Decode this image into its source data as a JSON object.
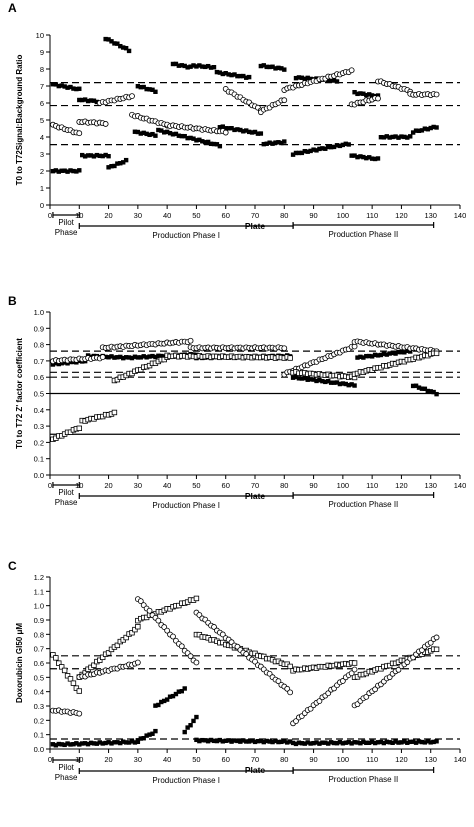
{
  "chart_data": [
    {
      "panel": "A",
      "type": "scatter",
      "title": "",
      "xlabel": "Plate",
      "ylabel": "T0 to T72Signal:Background Ratio",
      "xlim": [
        0,
        140
      ],
      "ylim": [
        0,
        10
      ],
      "xticks": [
        "0",
        "10",
        "20",
        "30",
        "40",
        "50",
        "60",
        "70",
        "80",
        "90",
        "100",
        "110",
        "120",
        "130",
        "140"
      ],
      "yticks": [
        "0",
        "1",
        "2",
        "3",
        "4",
        "5",
        "6",
        "7",
        "8",
        "9",
        "10"
      ],
      "grid": false,
      "hlines": [
        {
          "y": 7.2,
          "style": "dashed"
        },
        {
          "y": 5.85,
          "style": "dashed"
        },
        {
          "y": 3.55,
          "style": "dashed"
        }
      ],
      "series": [
        {
          "marker": "filled-square",
          "segments": [
            {
              "x0": 1,
              "x1": 10,
              "y0": 7.1,
              "y1": 6.8
            },
            {
              "x0": 19,
              "x1": 27,
              "y0": 9.8,
              "y1": 9.1
            },
            {
              "x0": 30,
              "x1": 36,
              "y0": 7.0,
              "y1": 6.7
            },
            {
              "x0": 42,
              "x1": 48,
              "y0": 8.3,
              "y1": 8.1
            },
            {
              "x0": 49,
              "x1": 56,
              "y0": 8.2,
              "y1": 8.1
            },
            {
              "x0": 57,
              "x1": 68,
              "y0": 7.8,
              "y1": 7.5
            },
            {
              "x0": 72,
              "x1": 80,
              "y0": 8.2,
              "y1": 8.0
            },
            {
              "x0": 84,
              "x1": 98,
              "y0": 7.5,
              "y1": 7.3
            },
            {
              "x0": 104,
              "x1": 112,
              "y0": 6.6,
              "y1": 6.4
            },
            {
              "x0": 1,
              "x1": 10,
              "y0": 2.0,
              "y1": 2.0
            },
            {
              "x0": 11,
              "x1": 20,
              "y0": 2.9,
              "y1": 2.9
            },
            {
              "x0": 20,
              "x1": 26,
              "y0": 2.2,
              "y1": 2.6
            },
            {
              "x0": 29,
              "x1": 36,
              "y0": 4.3,
              "y1": 4.1
            },
            {
              "x0": 37,
              "x1": 58,
              "y0": 4.4,
              "y1": 3.5
            },
            {
              "x0": 58,
              "x1": 72,
              "y0": 4.6,
              "y1": 4.2
            },
            {
              "x0": 73,
              "x1": 80,
              "y0": 3.6,
              "y1": 3.7
            },
            {
              "x0": 83,
              "x1": 102,
              "y0": 3.0,
              "y1": 3.6
            },
            {
              "x0": 103,
              "x1": 112,
              "y0": 2.9,
              "y1": 2.7
            },
            {
              "x0": 113,
              "x1": 123,
              "y0": 4.0,
              "y1": 4.0
            },
            {
              "x0": 124,
              "x1": 132,
              "y0": 4.3,
              "y1": 4.6
            },
            {
              "x0": 10,
              "x1": 16,
              "y0": 6.2,
              "y1": 6.1
            }
          ]
        },
        {
          "marker": "open-circle",
          "segments": [
            {
              "x0": 1,
              "x1": 10,
              "y0": 4.7,
              "y1": 4.2
            },
            {
              "x0": 10,
              "x1": 19,
              "y0": 4.9,
              "y1": 4.8
            },
            {
              "x0": 17,
              "x1": 28,
              "y0": 6.0,
              "y1": 6.4
            },
            {
              "x0": 28,
              "x1": 40,
              "y0": 5.3,
              "y1": 4.7
            },
            {
              "x0": 40,
              "x1": 60,
              "y0": 4.7,
              "y1": 4.3
            },
            {
              "x0": 60,
              "x1": 72,
              "y0": 6.8,
              "y1": 5.6
            },
            {
              "x0": 72,
              "x1": 80,
              "y0": 5.5,
              "y1": 6.2
            },
            {
              "x0": 80,
              "x1": 103,
              "y0": 6.8,
              "y1": 7.9
            },
            {
              "x0": 103,
              "x1": 112,
              "y0": 5.9,
              "y1": 6.3
            },
            {
              "x0": 112,
              "x1": 123,
              "y0": 7.3,
              "y1": 6.7
            },
            {
              "x0": 123,
              "x1": 132,
              "y0": 6.5,
              "y1": 6.5
            }
          ]
        }
      ],
      "annotations": [
        {
          "label": "Pilot\nPhase",
          "x_start": 1,
          "x_end": 10
        },
        {
          "label": "Production Phase I",
          "x_start": 10,
          "x_end": 83
        },
        {
          "label": "Production Phase II",
          "x_start": 83,
          "x_end": 131
        }
      ]
    },
    {
      "panel": "B",
      "type": "scatter",
      "title": "",
      "xlabel": "Plate",
      "ylabel": "T0 to T72 Z' factor coefficient",
      "xlim": [
        0,
        140
      ],
      "ylim": [
        0,
        1
      ],
      "xticks": [
        "0",
        "10",
        "20",
        "30",
        "40",
        "50",
        "60",
        "70",
        "80",
        "90",
        "100",
        "110",
        "120",
        "130",
        "140"
      ],
      "yticks": [
        "0.0",
        "0.1",
        "0.2",
        "0.3",
        "0.4",
        "0.5",
        "0.6",
        "0.7",
        "0.8",
        "0.9",
        "1.0"
      ],
      "grid": false,
      "hlines": [
        {
          "y": 0.76,
          "style": "dashed"
        },
        {
          "y": 0.63,
          "style": "dashed"
        },
        {
          "y": 0.6,
          "style": "dashed"
        },
        {
          "y": 0.5,
          "style": "solid"
        },
        {
          "y": 0.25,
          "style": "solid"
        }
      ],
      "series": [
        {
          "marker": "filled-square",
          "segments": [
            {
              "x0": 1,
              "x1": 12,
              "y0": 0.68,
              "y1": 0.7
            },
            {
              "x0": 13,
              "x1": 26,
              "y0": 0.73,
              "y1": 0.72
            },
            {
              "x0": 27,
              "x1": 50,
              "y0": 0.72,
              "y1": 0.74
            },
            {
              "x0": 50,
              "x1": 82,
              "y0": 0.72,
              "y1": 0.73
            },
            {
              "x0": 83,
              "x1": 104,
              "y0": 0.6,
              "y1": 0.55
            },
            {
              "x0": 105,
              "x1": 123,
              "y0": 0.72,
              "y1": 0.76
            },
            {
              "x0": 124,
              "x1": 132,
              "y0": 0.55,
              "y1": 0.5
            }
          ]
        },
        {
          "marker": "open-circle",
          "segments": [
            {
              "x0": 1,
              "x1": 18,
              "y0": 0.7,
              "y1": 0.72
            },
            {
              "x0": 18,
              "x1": 48,
              "y0": 0.78,
              "y1": 0.82
            },
            {
              "x0": 48,
              "x1": 80,
              "y0": 0.78,
              "y1": 0.78
            },
            {
              "x0": 80,
              "x1": 104,
              "y0": 0.62,
              "y1": 0.79
            },
            {
              "x0": 104,
              "x1": 132,
              "y0": 0.82,
              "y1": 0.76
            }
          ]
        },
        {
          "marker": "open-square",
          "segments": [
            {
              "x0": 1,
              "x1": 10,
              "y0": 0.22,
              "y1": 0.29
            },
            {
              "x0": 11,
              "x1": 22,
              "y0": 0.33,
              "y1": 0.38
            },
            {
              "x0": 22,
              "x1": 40,
              "y0": 0.58,
              "y1": 0.72
            },
            {
              "x0": 40,
              "x1": 82,
              "y0": 0.73,
              "y1": 0.72
            },
            {
              "x0": 83,
              "x1": 104,
              "y0": 0.63,
              "y1": 0.6
            },
            {
              "x0": 104,
              "x1": 132,
              "y0": 0.62,
              "y1": 0.75
            }
          ]
        }
      ],
      "annotations": [
        {
          "label": "Pilot\nPhase",
          "x_start": 1,
          "x_end": 10
        },
        {
          "label": "Production Phase I",
          "x_start": 10,
          "x_end": 83
        },
        {
          "label": "Production Phase II",
          "x_start": 83,
          "x_end": 131
        }
      ]
    },
    {
      "panel": "C",
      "type": "scatter",
      "title": "",
      "xlabel": "Plate",
      "ylabel": "Doxorubicin GI50 μM",
      "xlim": [
        0,
        140
      ],
      "ylim": [
        0,
        1.2
      ],
      "xticks": [
        "0",
        "10",
        "20",
        "30",
        "40",
        "50",
        "60",
        "70",
        "80",
        "90",
        "100",
        "110",
        "120",
        "130",
        "140"
      ],
      "yticks": [
        "0.0",
        "0.1",
        "0.2",
        "0.3",
        "0.4",
        "0.5",
        "0.6",
        "0.7",
        "0.8",
        "0.9",
        "1.0",
        "1.1",
        "1.2"
      ],
      "grid": false,
      "hlines": [
        {
          "y": 0.65,
          "style": "dashed"
        },
        {
          "y": 0.56,
          "style": "dashed"
        },
        {
          "y": 0.07,
          "style": "dashed"
        }
      ],
      "series": [
        {
          "marker": "filled-square",
          "segments": [
            {
              "x0": 1,
              "x1": 30,
              "y0": 0.03,
              "y1": 0.05
            },
            {
              "x0": 30,
              "x1": 36,
              "y0": 0.06,
              "y1": 0.12
            },
            {
              "x0": 36,
              "x1": 46,
              "y0": 0.3,
              "y1": 0.42
            },
            {
              "x0": 46,
              "x1": 50,
              "y0": 0.12,
              "y1": 0.22
            },
            {
              "x0": 50,
              "x1": 82,
              "y0": 0.06,
              "y1": 0.05
            },
            {
              "x0": 83,
              "x1": 132,
              "y0": 0.04,
              "y1": 0.05
            }
          ]
        },
        {
          "marker": "open-square",
          "segments": [
            {
              "x0": 1,
              "x1": 10,
              "y0": 0.66,
              "y1": 0.4
            },
            {
              "x0": 10,
              "x1": 30,
              "y0": 0.5,
              "y1": 0.85
            },
            {
              "x0": 30,
              "x1": 50,
              "y0": 0.9,
              "y1": 1.05
            },
            {
              "x0": 50,
              "x1": 82,
              "y0": 0.8,
              "y1": 0.58
            },
            {
              "x0": 83,
              "x1": 104,
              "y0": 0.55,
              "y1": 0.6
            },
            {
              "x0": 104,
              "x1": 132,
              "y0": 0.5,
              "y1": 0.7
            }
          ]
        },
        {
          "marker": "open-circle",
          "segments": [
            {
              "x0": 1,
              "x1": 10,
              "y0": 0.27,
              "y1": 0.25
            },
            {
              "x0": 10,
              "x1": 30,
              "y0": 0.5,
              "y1": 0.6
            },
            {
              "x0": 30,
              "x1": 50,
              "y0": 1.05,
              "y1": 0.6
            },
            {
              "x0": 50,
              "x1": 82,
              "y0": 0.95,
              "y1": 0.4
            },
            {
              "x0": 83,
              "x1": 104,
              "y0": 0.18,
              "y1": 0.55
            },
            {
              "x0": 104,
              "x1": 132,
              "y0": 0.3,
              "y1": 0.78
            }
          ]
        }
      ],
      "annotations": [
        {
          "label": "Pilot\nPhase",
          "x_start": 1,
          "x_end": 10
        },
        {
          "label": "Production Phase I",
          "x_start": 10,
          "x_end": 83
        },
        {
          "label": "Production Phase II",
          "x_start": 83,
          "x_end": 131
        }
      ]
    }
  ]
}
